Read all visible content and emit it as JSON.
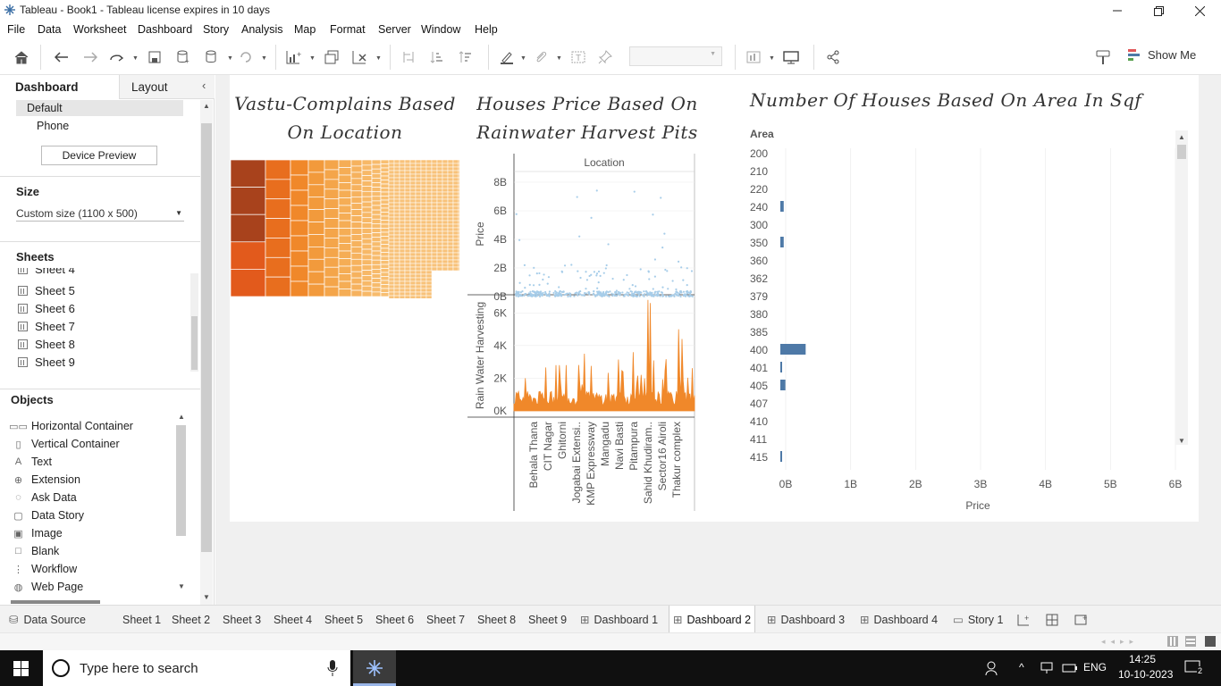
{
  "window": {
    "title": "Tableau - Book1 - Tableau license expires in 10 days"
  },
  "menu": [
    "File",
    "Data",
    "Worksheet",
    "Dashboard",
    "Story",
    "Analysis",
    "Map",
    "Format",
    "Server",
    "Window",
    "Help"
  ],
  "toolbar": {
    "show_me": "Show Me"
  },
  "sidebar": {
    "tab_dashboard": "Dashboard",
    "tab_layout": "Layout",
    "device_default": "Default",
    "device_phone": "Phone",
    "device_preview": "Device Preview",
    "size_title": "Size",
    "size_value": "Custom size (1100 x 500)",
    "sheets_title": "Sheets",
    "sheets": [
      "Sheet 4",
      "Sheet 5",
      "Sheet 6",
      "Sheet 7",
      "Sheet 8",
      "Sheet 9"
    ],
    "objects_title": "Objects",
    "objects": [
      "Horizontal Container",
      "Vertical Container",
      "Text",
      "Extension",
      "Ask Data",
      "Data Story",
      "Image",
      "Blank",
      "Workflow",
      "Web Page"
    ]
  },
  "dashboard": {
    "treemap": {
      "title_line1": "Vastu-Complains Based",
      "title_line2": "On Location"
    },
    "middle": {
      "title_line1": "Houses Price Based On",
      "title_line2": "Rainwater Harvest Pits",
      "col_header": "Location",
      "price_label": "Price",
      "price_ticks": [
        "8B",
        "6B",
        "4B",
        "2B",
        "0B"
      ],
      "rain_label": "Rain Water Harvesting",
      "rain_ticks": [
        "6K",
        "4K",
        "2K",
        "0K"
      ],
      "locations": [
        "Behala Thana",
        "CIT Nagar",
        "Ghitorni",
        "Jogabai Extensi..",
        "KMP Expressway",
        "Mangadu",
        "Navi Basti",
        "Pitampura",
        "Sahid Khudiram..",
        "Sector16 Airoli",
        "Thakur complex"
      ]
    },
    "right": {
      "title": "Number Of Houses Based On Area In Sqf",
      "area_header": "Area",
      "x_label": "Price",
      "x_ticks": [
        "0B",
        "1B",
        "2B",
        "3B",
        "4B",
        "5B",
        "6B"
      ]
    }
  },
  "chart_data": [
    {
      "type": "heatmap",
      "title": "Vastu-Complains Based On Location",
      "note": "treemap of locations colored by vastu complaints"
    },
    {
      "type": "scatter",
      "title": "Houses Price Based On Rainwater Harvest Pits",
      "xlabel": "Location",
      "ylabel": "Price",
      "ylim": [
        0,
        8000000000
      ],
      "y_ticks": [
        "0B",
        "2B",
        "4B",
        "6B",
        "8B"
      ]
    },
    {
      "type": "area",
      "xlabel": "Location",
      "ylabel": "Rain Water Harvesting",
      "ylim": [
        0,
        7000
      ],
      "y_ticks": [
        "0K",
        "2K",
        "4K",
        "6K"
      ],
      "peaks": [
        {
          "x": "Navi Basti",
          "y": 6800
        },
        {
          "x": "Thakur complex",
          "y": 5000
        },
        {
          "x": "Pitampura",
          "y": 3600
        },
        {
          "x": "Mangadu",
          "y": 3500
        }
      ]
    },
    {
      "type": "bar",
      "title": "Number Of Houses Based On Area In Sqf",
      "orientation": "horizontal",
      "xlabel": "Price",
      "ylabel": "Area",
      "xlim": [
        0,
        6000000000
      ],
      "categories": [
        "200",
        "210",
        "220",
        "240",
        "300",
        "350",
        "360",
        "362",
        "379",
        "380",
        "385",
        "400",
        "401",
        "405",
        "407",
        "410",
        "411",
        "415"
      ],
      "values": [
        0,
        0,
        0,
        20000000,
        0,
        20000000,
        0,
        0,
        0,
        0,
        0,
        150000000,
        10000000,
        30000000,
        0,
        0,
        0,
        10000000
      ]
    }
  ],
  "bottom_tabs": [
    "Data Source",
    "Sheet 1",
    "Sheet 2",
    "Sheet 3",
    "Sheet 4",
    "Sheet 5",
    "Sheet 6",
    "Sheet 7",
    "Sheet 8",
    "Sheet 9",
    "Dashboard 1",
    "Dashboard 2",
    "Dashboard 3",
    "Dashboard 4",
    "Story 1"
  ],
  "taskbar": {
    "search_placeholder": "Type here to search",
    "lang": "ENG",
    "time": "14:25",
    "date": "10-10-2023",
    "notif_count": "2"
  },
  "colors": {
    "orange": "#f0882a",
    "dark_orange": "#a8421c",
    "light_orange": "#f6b25e",
    "blue": "#4e79a7",
    "light_blue": "#a7cde9"
  }
}
